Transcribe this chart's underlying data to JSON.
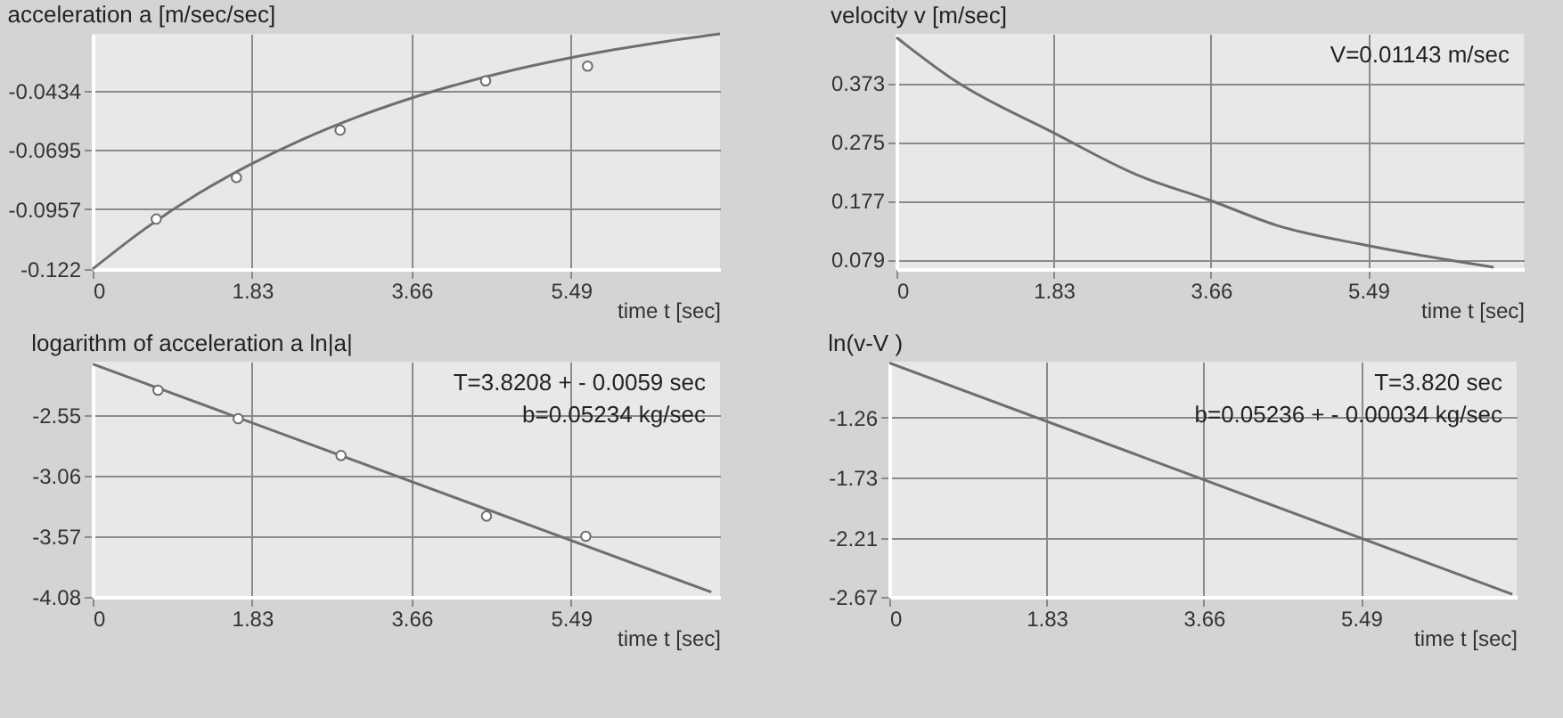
{
  "chart_data": [
    {
      "type": "line",
      "title": "acceleration a [m/sec/sec]",
      "xlabel": "time t [sec]",
      "xlim": [
        0,
        7.2
      ],
      "xticks": [
        0,
        1.83,
        3.66,
        5.49
      ],
      "ylim": [
        -0.122,
        -0.0185
      ],
      "yticks": [
        -0.122,
        -0.0957,
        -0.0695,
        -0.0434
      ],
      "grid": true,
      "series": [
        {
          "type": "line",
          "color": "#6e6e6e",
          "x": [
            0,
            0.6,
            1.2,
            1.8,
            2.4,
            3.0,
            3.6,
            4.2,
            4.8,
            5.4,
            6.0,
            6.6,
            7.2
          ],
          "values": [
            -0.122,
            -0.1043,
            -0.0891,
            -0.0762,
            -0.0651,
            -0.0556,
            -0.0475,
            -0.0406,
            -0.0347,
            -0.0297,
            -0.0254,
            -0.0217,
            -0.0185
          ]
        },
        {
          "type": "scatter",
          "marker": "circle",
          "color": "#ffffff",
          "x": [
            0.73,
            1.65,
            2.84,
            4.51,
            5.68
          ],
          "values": [
            -0.1,
            -0.0817,
            -0.0609,
            -0.0392,
            -0.0327
          ]
        }
      ]
    },
    {
      "type": "line",
      "title": "velocity v [m/sec]",
      "xlabel": "time t [sec]",
      "xlim": [
        0,
        7.3
      ],
      "xticks": [
        0,
        1.83,
        3.66,
        5.49
      ],
      "ylim": [
        0.063,
        0.455
      ],
      "yticks": [
        0.079,
        0.177,
        0.275,
        0.373
      ],
      "grid": true,
      "annotations": [
        "V=0.01143 m/sec"
      ],
      "series": [
        {
          "type": "line",
          "color": "#6e6e6e",
          "x": [
            0,
            0.68,
            1.83,
            2.8,
            3.66,
            4.42,
            5.49,
            6.95
          ],
          "values": [
            0.449,
            0.377,
            0.29,
            0.22,
            0.177,
            0.136,
            0.102,
            0.066
          ]
        }
      ]
    },
    {
      "type": "line",
      "title": "logarithm of acceleration a ln|a|",
      "xlabel": "time t [sec]",
      "xlim": [
        0,
        7.2
      ],
      "xticks": [
        0,
        1.83,
        3.66,
        5.49
      ],
      "ylim": [
        -4.08,
        -2.1
      ],
      "yticks": [
        -4.08,
        -3.57,
        -3.06,
        -2.55
      ],
      "grid": true,
      "annotations": [
        "T=3.8208 + - 0.0059 sec",
        "b=0.05234 kg/sec"
      ],
      "series": [
        {
          "type": "line",
          "color": "#6e6e6e",
          "x": [
            0,
            7.1
          ],
          "values": [
            -2.12,
            -4.04
          ]
        },
        {
          "type": "scatter",
          "marker": "circle",
          "color": "#ffffff",
          "x": [
            0.75,
            1.67,
            2.85,
            4.52,
            5.66
          ],
          "values": [
            -2.34,
            -2.58,
            -2.89,
            -3.4,
            -3.57
          ]
        }
      ]
    },
    {
      "type": "line",
      "title": "ln(v-V )",
      "xlabel": "time t [sec]",
      "xlim": [
        0,
        7.3
      ],
      "xticks": [
        0,
        1.83,
        3.66,
        5.49
      ],
      "ylim": [
        -2.67,
        -0.82
      ],
      "yticks": [
        -2.67,
        -2.21,
        -1.73,
        -1.26
      ],
      "grid": true,
      "annotations": [
        "T=3.820 sec",
        "b=0.05236 + - 0.00034 kg/sec"
      ],
      "series": [
        {
          "type": "line",
          "color": "#6e6e6e",
          "x": [
            0,
            7.25
          ],
          "values": [
            -0.83,
            -2.65
          ]
        }
      ]
    }
  ]
}
